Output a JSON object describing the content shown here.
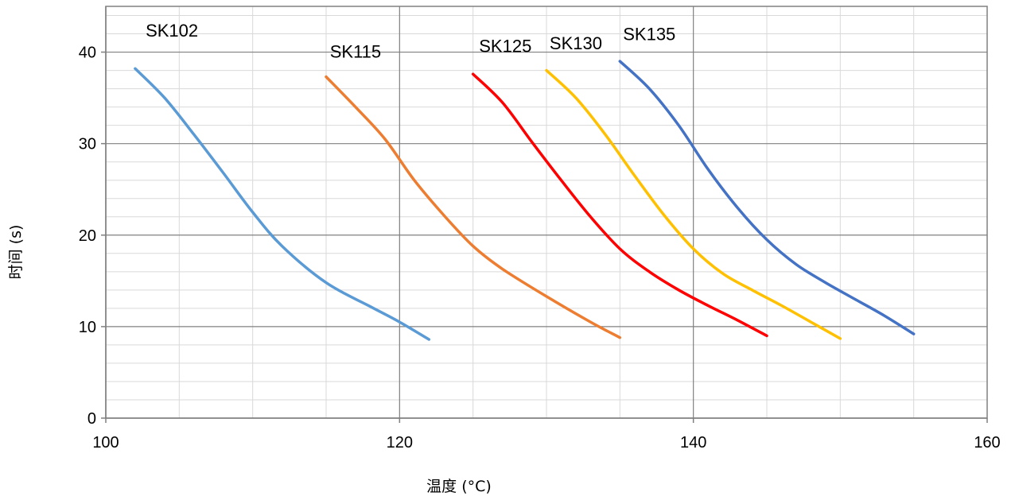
{
  "chart_data": {
    "type": "line",
    "title": "",
    "xlabel": "温度 (°C)",
    "ylabel": "时间 (s)",
    "xlim": [
      100,
      160
    ],
    "ylim": [
      0,
      45
    ],
    "x_ticks": [
      100,
      120,
      140,
      160
    ],
    "y_ticks": [
      0,
      10,
      20,
      30,
      40
    ],
    "x_tick_labels": [
      "100",
      "120",
      "140",
      "160"
    ],
    "y_tick_labels": [
      "0",
      "10",
      "20",
      "30",
      "40"
    ],
    "grid": true,
    "legend": "none",
    "series": [
      {
        "name": "SK102",
        "color": "#5B9BD5",
        "x": [
          102,
          104,
          106,
          108,
          110,
          112,
          115,
          118,
          120,
          122
        ],
        "y": [
          38.2,
          35.0,
          31.0,
          26.8,
          22.5,
          18.8,
          14.8,
          12.2,
          10.5,
          8.6
        ]
      },
      {
        "name": "SK115",
        "color": "#ED7D31",
        "x": [
          115,
          117,
          119,
          121,
          123,
          125,
          127,
          130,
          133,
          135
        ],
        "y": [
          37.3,
          34.0,
          30.5,
          26.0,
          22.2,
          18.8,
          16.3,
          13.3,
          10.5,
          8.8
        ]
      },
      {
        "name": "SK125",
        "color": "#FF0000",
        "x": [
          125,
          127,
          129,
          131,
          133,
          135,
          137,
          139,
          141,
          143,
          145
        ],
        "y": [
          37.6,
          34.5,
          30.2,
          26.0,
          22.0,
          18.5,
          16.0,
          14.0,
          12.3,
          10.7,
          9.0
        ]
      },
      {
        "name": "SK130",
        "color": "#FFC000",
        "x": [
          130,
          132,
          134,
          136,
          138,
          140,
          142,
          144,
          146,
          148,
          150
        ],
        "y": [
          38.0,
          35.0,
          31.0,
          26.5,
          22.2,
          18.5,
          15.8,
          14.0,
          12.3,
          10.5,
          8.7
        ]
      },
      {
        "name": "SK135",
        "color": "#4472C4",
        "x": [
          135,
          137,
          139,
          141,
          143,
          145,
          147,
          149,
          151,
          153,
          155
        ],
        "y": [
          39.0,
          36.0,
          32.0,
          27.2,
          23.0,
          19.5,
          16.8,
          14.8,
          13.0,
          11.2,
          9.2
        ]
      }
    ],
    "annotations": [
      {
        "text": "SK102",
        "x": 104.5,
        "y": 41.7
      },
      {
        "text": "SK115",
        "x": 117.0,
        "y": 39.4
      },
      {
        "text": "SK125",
        "x": 127.2,
        "y": 40.0
      },
      {
        "text": "SK130",
        "x": 132.0,
        "y": 40.3
      },
      {
        "text": "SK135",
        "x": 137.0,
        "y": 41.3
      }
    ]
  }
}
